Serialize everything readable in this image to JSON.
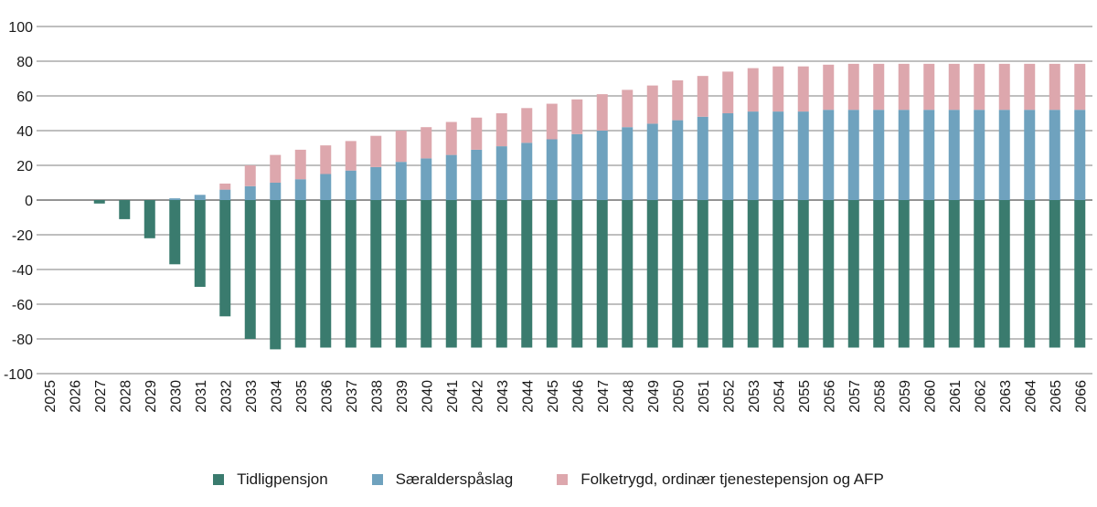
{
  "chart_data": {
    "type": "bar",
    "stacked": true,
    "categories": [
      "2025",
      "2026",
      "2027",
      "2028",
      "2029",
      "2030",
      "2031",
      "2032",
      "2033",
      "2034",
      "2035",
      "2036",
      "2037",
      "2038",
      "2039",
      "2040",
      "2041",
      "2042",
      "2043",
      "2044",
      "2045",
      "2046",
      "2047",
      "2048",
      "2049",
      "2050",
      "2051",
      "2052",
      "2053",
      "2054",
      "2055",
      "2056",
      "2057",
      "2058",
      "2059",
      "2060",
      "2061",
      "2062",
      "2063",
      "2064",
      "2065",
      "2066"
    ],
    "series": [
      {
        "name": "Tidligpensjon",
        "color": "#3a7b6e",
        "values": [
          0,
          0,
          -2,
          -11,
          -22,
          -37,
          -50,
          -67,
          -80,
          -86,
          -85,
          -85,
          -85,
          -85,
          -85,
          -85,
          -85,
          -85,
          -85,
          -85,
          -85,
          -85,
          -85,
          -85,
          -85,
          -85,
          -85,
          -85,
          -85,
          -85,
          -85,
          -85,
          -85,
          -85,
          -85,
          -85,
          -85,
          -85,
          -85,
          -85,
          -85,
          -85
        ]
      },
      {
        "name": "Særalderspåslag",
        "color": "#6fa2be",
        "values": [
          0,
          0,
          0,
          0,
          0,
          1,
          3,
          6,
          8,
          10,
          12,
          15,
          17,
          19,
          22,
          24,
          26,
          29,
          31,
          33,
          35,
          38,
          40,
          42,
          44,
          46,
          48,
          50,
          51,
          51,
          51,
          52,
          52,
          52,
          52,
          52,
          52,
          52,
          52,
          52,
          52,
          52
        ]
      },
      {
        "name": "Folketrygd, ordinær tjenestepensjon og AFP",
        "color": "#dda7ad",
        "values": [
          0,
          0,
          0,
          0,
          0,
          0,
          0,
          3.5,
          12,
          16,
          17,
          16.5,
          17,
          18,
          18,
          18,
          19,
          18.5,
          19,
          20,
          20.5,
          20,
          21,
          21.5,
          22,
          23,
          23.5,
          24,
          25,
          26,
          26,
          26,
          26.5,
          26.5,
          26.5,
          26.5,
          26.5,
          26.5,
          26.5,
          26.5,
          26.5,
          26.5
        ]
      }
    ],
    "ylim": [
      -100,
      100
    ],
    "yticks": [
      "100",
      "80",
      "60",
      "40",
      "20",
      "0",
      "-20",
      "-40",
      "-60",
      "-80",
      "-100"
    ],
    "grid": true,
    "legend_position": "bottom",
    "title": "",
    "xlabel": "",
    "ylabel": ""
  }
}
